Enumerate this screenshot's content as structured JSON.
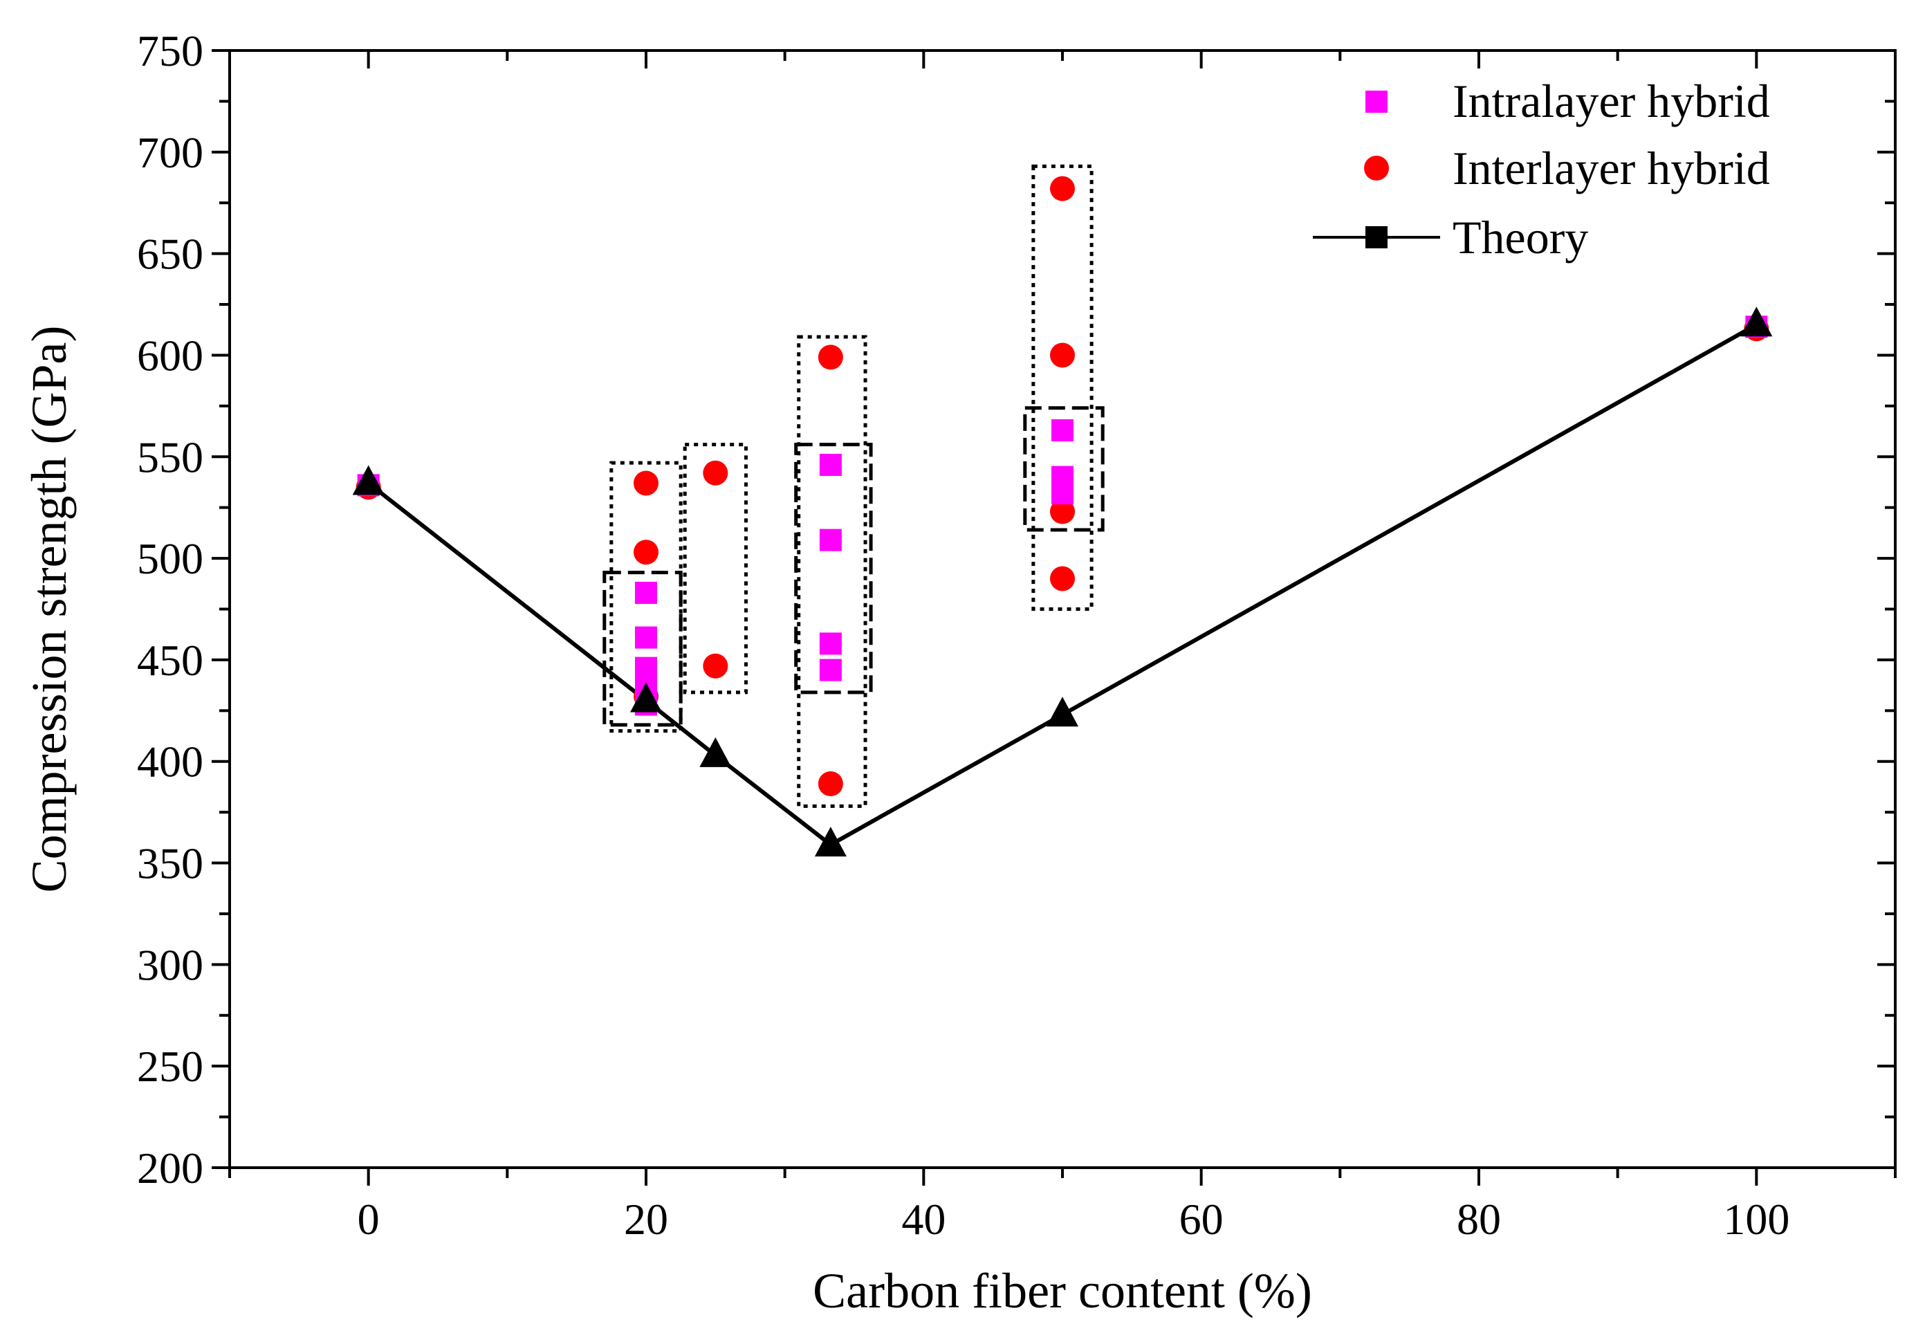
{
  "chart_data": {
    "type": "scatter",
    "title": "",
    "xlabel": "Carbon fiber content (%)",
    "ylabel": "Compression strength (GPa)",
    "xlim": [
      -10,
      110
    ],
    "ylim": [
      200,
      750
    ],
    "xticks": [
      0,
      20,
      40,
      60,
      80,
      100
    ],
    "yticks": [
      200,
      250,
      300,
      350,
      400,
      450,
      500,
      550,
      600,
      650,
      700,
      750
    ],
    "x_minor_step": 10,
    "y_minor_step": 25,
    "grid": false,
    "legend_position": "top-right",
    "series": [
      {
        "name": "Intralayer hybrid",
        "marker": "square",
        "color": "#FF00FF",
        "points": [
          [
            0,
            536
          ],
          [
            20,
            483
          ],
          [
            20,
            461
          ],
          [
            20,
            446
          ],
          [
            20,
            439
          ],
          [
            20,
            428
          ],
          [
            33.3,
            546
          ],
          [
            33.3,
            509
          ],
          [
            33.3,
            458
          ],
          [
            33.3,
            445
          ],
          [
            50,
            563
          ],
          [
            50,
            540
          ],
          [
            50,
            532
          ],
          [
            100,
            614
          ]
        ]
      },
      {
        "name": "Interlayer hybrid",
        "marker": "circle",
        "color": "#FF0000",
        "points": [
          [
            0,
            535
          ],
          [
            20,
            537
          ],
          [
            20,
            503
          ],
          [
            20,
            432
          ],
          [
            25,
            542
          ],
          [
            25,
            447
          ],
          [
            33.3,
            599
          ],
          [
            33.3,
            389
          ],
          [
            50,
            682
          ],
          [
            50,
            600
          ],
          [
            50,
            523
          ],
          [
            50,
            490
          ],
          [
            100,
            613
          ]
        ]
      },
      {
        "name": "Theory",
        "marker": "triangle",
        "line": true,
        "color": "#000000",
        "points": [
          [
            0,
            537
          ],
          [
            20,
            430
          ],
          [
            25,
            403
          ],
          [
            33.3,
            359
          ],
          [
            50,
            423
          ],
          [
            100,
            615
          ]
        ]
      }
    ],
    "annotations": [
      {
        "style": "dotted",
        "x_range": [
          17.5,
          22.5
        ],
        "y_range": [
          415,
          547
        ]
      },
      {
        "style": "dashed",
        "x_range": [
          17,
          22.5
        ],
        "y_range": [
          418,
          493
        ]
      },
      {
        "style": "dotted",
        "x_range": [
          22.8,
          27.2
        ],
        "y_range": [
          434,
          556
        ]
      },
      {
        "style": "dotted",
        "x_range": [
          31,
          35.8
        ],
        "y_range": [
          378,
          609
        ]
      },
      {
        "style": "dashed",
        "x_range": [
          30.8,
          36.2
        ],
        "y_range": [
          434,
          556
        ]
      },
      {
        "style": "dotted",
        "x_range": [
          47.9,
          52.1
        ],
        "y_range": [
          475,
          693
        ]
      },
      {
        "style": "dashed",
        "x_range": [
          47.3,
          52.9
        ],
        "y_range": [
          514,
          574
        ]
      }
    ]
  }
}
